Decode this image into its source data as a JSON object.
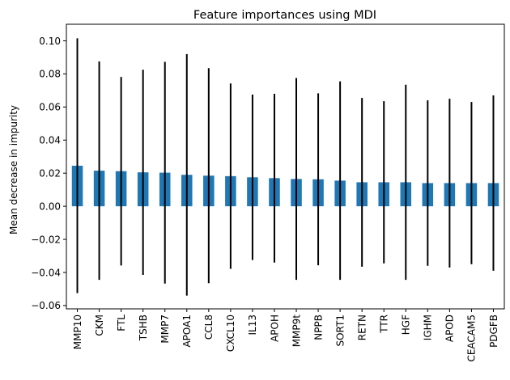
{
  "chart_data": {
    "type": "bar",
    "title": "Feature importances using MDI",
    "xlabel": "",
    "ylabel": "Mean decrease in impurity",
    "ylim": [
      -0.062,
      0.11
    ],
    "yticks": [
      -0.06,
      -0.04,
      -0.02,
      0.0,
      0.02,
      0.04,
      0.06,
      0.08,
      0.1
    ],
    "ytick_labels": [
      "−0.06",
      "−0.04",
      "−0.02",
      "0.00",
      "0.02",
      "0.04",
      "0.06",
      "0.08",
      "0.10"
    ],
    "grid": false,
    "categories": [
      "MMP10",
      "CKM",
      "FTL",
      "TSHB",
      "MMP7",
      "APOA1",
      "CCL8",
      "CXCL10",
      "IL13",
      "APOH",
      "MMP9t",
      "NPPB",
      "SORT1",
      "RETN",
      "TTR",
      "HGF",
      "IGHM",
      "APOD",
      "CEACAM5",
      "PDGFB"
    ],
    "values": [
      0.0245,
      0.0215,
      0.0212,
      0.0205,
      0.0203,
      0.019,
      0.0185,
      0.0182,
      0.0175,
      0.017,
      0.0165,
      0.0163,
      0.0155,
      0.0145,
      0.0145,
      0.0145,
      0.014,
      0.014,
      0.014,
      0.014
    ],
    "error": [
      0.077,
      0.066,
      0.057,
      0.062,
      0.067,
      0.073,
      0.065,
      0.056,
      0.05,
      0.051,
      0.061,
      0.052,
      0.06,
      0.051,
      0.049,
      0.059,
      0.05,
      0.051,
      0.049,
      0.053
    ],
    "colors": {
      "bar": "#1f77b4",
      "errorbar": "#000000"
    }
  }
}
